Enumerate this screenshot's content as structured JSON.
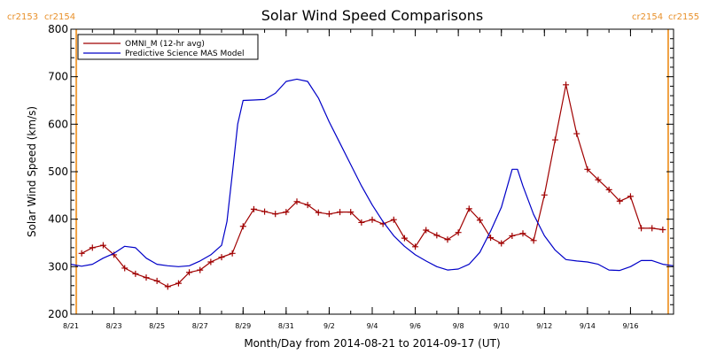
{
  "chart_data": {
    "type": "line",
    "title": "Solar Wind Speed Comparisons",
    "xlabel": "Month/Day from 2014-08-21 to 2014-09-17 (UT)",
    "ylabel": "Solar Wind Speed (km/s)",
    "xlim": [
      "2014-08-21",
      "2014-09-18"
    ],
    "ylim": [
      200,
      800
    ],
    "yticks": [
      200,
      300,
      400,
      500,
      600,
      700,
      800
    ],
    "xticks": [
      {
        "date": "2014-08-21",
        "label": "8/21"
      },
      {
        "date": "2014-08-23",
        "label": "8/23"
      },
      {
        "date": "2014-08-25",
        "label": "8/25"
      },
      {
        "date": "2014-08-27",
        "label": "8/27"
      },
      {
        "date": "2014-08-29",
        "label": "8/29"
      },
      {
        "date": "2014-08-31",
        "label": "8/31"
      },
      {
        "date": "2014-09-02",
        "label": "9/2"
      },
      {
        "date": "2014-09-04",
        "label": "9/4"
      },
      {
        "date": "2014-09-06",
        "label": "9/6"
      },
      {
        "date": "2014-09-08",
        "label": "9/8"
      },
      {
        "date": "2014-09-10",
        "label": "9/10"
      },
      {
        "date": "2014-09-12",
        "label": "9/12"
      },
      {
        "date": "2014-09-14",
        "label": "9/14"
      },
      {
        "date": "2014-09-16",
        "label": "9/16"
      }
    ],
    "legend": "top-left",
    "grid": false,
    "carrington_markers": [
      {
        "date": "2014-08-21T06:00",
        "left_label": "cr2153",
        "right_label": "cr2154",
        "color": "#f0a040"
      },
      {
        "date": "2014-09-17T18:00",
        "left_label": "cr2154",
        "right_label": "cr2155",
        "color": "#f0a040"
      }
    ],
    "series": [
      {
        "name": "OMNI_M (12-hr avg)",
        "color": "#a00000",
        "marker": "plus",
        "points": [
          [
            "2014-08-21T12:00",
            328
          ],
          [
            "2014-08-22T00:00",
            340
          ],
          [
            "2014-08-22T12:00",
            345
          ],
          [
            "2014-08-23T00:00",
            325
          ],
          [
            "2014-08-23T12:00",
            297
          ],
          [
            "2014-08-24T00:00",
            285
          ],
          [
            "2014-08-24T12:00",
            277
          ],
          [
            "2014-08-25T00:00",
            270
          ],
          [
            "2014-08-25T12:00",
            258
          ],
          [
            "2014-08-26T00:00",
            265
          ],
          [
            "2014-08-26T12:00",
            288
          ],
          [
            "2014-08-27T00:00",
            293
          ],
          [
            "2014-08-27T12:00",
            310
          ],
          [
            "2014-08-28T00:00",
            320
          ],
          [
            "2014-08-28T12:00",
            328
          ],
          [
            "2014-08-29T00:00",
            385
          ],
          [
            "2014-08-29T12:00",
            421
          ],
          [
            "2014-08-30T00:00",
            416
          ],
          [
            "2014-08-30T12:00",
            411
          ],
          [
            "2014-08-31T00:00",
            415
          ],
          [
            "2014-08-31T12:00",
            437
          ],
          [
            "2014-09-01T00:00",
            430
          ],
          [
            "2014-09-01T12:00",
            414
          ],
          [
            "2014-09-02T00:00",
            411
          ],
          [
            "2014-09-02T12:00",
            415
          ],
          [
            "2014-09-03T00:00",
            415
          ],
          [
            "2014-09-03T12:00",
            393
          ],
          [
            "2014-09-04T00:00",
            399
          ],
          [
            "2014-09-04T12:00",
            390
          ],
          [
            "2014-09-05T00:00",
            399
          ],
          [
            "2014-09-05T12:00",
            360
          ],
          [
            "2014-09-06T00:00",
            342
          ],
          [
            "2014-09-06T12:00",
            377
          ],
          [
            "2014-09-07T00:00",
            366
          ],
          [
            "2014-09-07T12:00",
            357
          ],
          [
            "2014-09-08T00:00",
            372
          ],
          [
            "2014-09-08T12:00",
            422
          ],
          [
            "2014-09-09T00:00",
            398
          ],
          [
            "2014-09-09T12:00",
            361
          ],
          [
            "2014-09-10T00:00",
            349
          ],
          [
            "2014-09-10T12:00",
            365
          ],
          [
            "2014-09-11T00:00",
            370
          ],
          [
            "2014-09-11T12:00",
            355
          ],
          [
            "2014-09-12T00:00",
            451
          ],
          [
            "2014-09-12T12:00",
            567
          ],
          [
            "2014-09-13T00:00",
            683
          ],
          [
            "2014-09-13T12:00",
            580
          ],
          [
            "2014-09-14T00:00",
            505
          ],
          [
            "2014-09-14T12:00",
            483
          ],
          [
            "2014-09-15T00:00",
            462
          ],
          [
            "2014-09-15T12:00",
            438
          ],
          [
            "2014-09-16T00:00",
            448
          ],
          [
            "2014-09-16T12:00",
            381
          ],
          [
            "2014-09-17T00:00",
            381
          ],
          [
            "2014-09-17T12:00",
            378
          ]
        ]
      },
      {
        "name": "Predictive Science MAS Model",
        "color": "#0000c8",
        "marker": "none",
        "points": [
          [
            "2014-08-21T00:00",
            305
          ],
          [
            "2014-08-21T12:00",
            301
          ],
          [
            "2014-08-22T00:00",
            305
          ],
          [
            "2014-08-22T12:00",
            318
          ],
          [
            "2014-08-23T00:00",
            328
          ],
          [
            "2014-08-23T12:00",
            343
          ],
          [
            "2014-08-24T00:00",
            340
          ],
          [
            "2014-08-24T12:00",
            318
          ],
          [
            "2014-08-25T00:00",
            305
          ],
          [
            "2014-08-25T12:00",
            302
          ],
          [
            "2014-08-26T00:00",
            300
          ],
          [
            "2014-08-26T12:00",
            302
          ],
          [
            "2014-08-27T00:00",
            312
          ],
          [
            "2014-08-27T12:00",
            325
          ],
          [
            "2014-08-28T00:00",
            345
          ],
          [
            "2014-08-28T06:00",
            395
          ],
          [
            "2014-08-28T12:00",
            495
          ],
          [
            "2014-08-28T18:00",
            600
          ],
          [
            "2014-08-29T00:00",
            650
          ],
          [
            "2014-08-29T12:00",
            651
          ],
          [
            "2014-08-30T00:00",
            652
          ],
          [
            "2014-08-30T12:00",
            665
          ],
          [
            "2014-08-31T00:00",
            690
          ],
          [
            "2014-08-31T12:00",
            695
          ],
          [
            "2014-09-01T00:00",
            690
          ],
          [
            "2014-09-01T12:00",
            655
          ],
          [
            "2014-09-02T00:00",
            605
          ],
          [
            "2014-09-02T12:00",
            560
          ],
          [
            "2014-09-03T00:00",
            515
          ],
          [
            "2014-09-03T12:00",
            470
          ],
          [
            "2014-09-04T00:00",
            430
          ],
          [
            "2014-09-04T12:00",
            395
          ],
          [
            "2014-09-05T00:00",
            365
          ],
          [
            "2014-09-05T12:00",
            343
          ],
          [
            "2014-09-06T00:00",
            325
          ],
          [
            "2014-09-06T12:00",
            312
          ],
          [
            "2014-09-07T00:00",
            300
          ],
          [
            "2014-09-07T12:00",
            293
          ],
          [
            "2014-09-08T00:00",
            295
          ],
          [
            "2014-09-08T12:00",
            305
          ],
          [
            "2014-09-09T00:00",
            330
          ],
          [
            "2014-09-09T12:00",
            375
          ],
          [
            "2014-09-10T00:00",
            425
          ],
          [
            "2014-09-10T12:00",
            505
          ],
          [
            "2014-09-10T18:00",
            505
          ],
          [
            "2014-09-11T00:00",
            470
          ],
          [
            "2014-09-11T12:00",
            410
          ],
          [
            "2014-09-12T00:00",
            365
          ],
          [
            "2014-09-12T12:00",
            335
          ],
          [
            "2014-09-13T00:00",
            315
          ],
          [
            "2014-09-13T12:00",
            312
          ],
          [
            "2014-09-14T00:00",
            310
          ],
          [
            "2014-09-14T12:00",
            305
          ],
          [
            "2014-09-15T00:00",
            293
          ],
          [
            "2014-09-15T12:00",
            292
          ],
          [
            "2014-09-16T00:00",
            300
          ],
          [
            "2014-09-16T12:00",
            313
          ],
          [
            "2014-09-17T00:00",
            313
          ],
          [
            "2014-09-17T12:00",
            305
          ],
          [
            "2014-09-18T00:00",
            302
          ]
        ]
      }
    ]
  }
}
